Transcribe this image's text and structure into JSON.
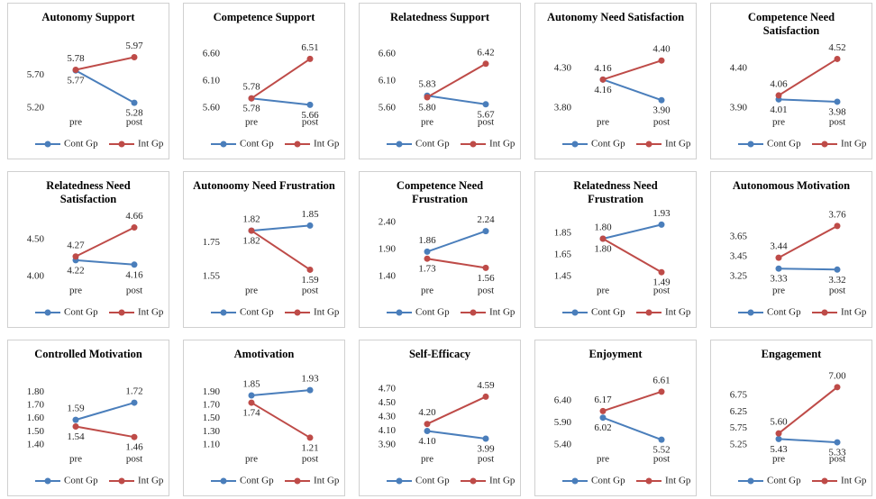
{
  "chart_data": [
    {
      "type": "line",
      "title": "Autonomy  Support",
      "categories": [
        "pre",
        "post"
      ],
      "ylim": [
        5.2,
        6.1
      ],
      "yticks": [
        {
          "value": 5.2,
          "label": "5.20"
        },
        {
          "value": 5.7,
          "label": "5.70"
        }
      ],
      "series": [
        {
          "name": "Cont Gp",
          "color": "#4a7ebb",
          "values": [
            5.77,
            5.28
          ],
          "value_labels": [
            "5.77",
            "5.28"
          ]
        },
        {
          "name": "Int Gp",
          "color": "#be4b48",
          "values": [
            5.78,
            5.97
          ],
          "value_labels": [
            "5.78",
            "5.97"
          ]
        }
      ]
    },
    {
      "type": "line",
      "title": "Competence Support",
      "categories": [
        "pre",
        "post"
      ],
      "ylim": [
        5.6,
        6.7
      ],
      "yticks": [
        {
          "value": 5.6,
          "label": "5.60"
        },
        {
          "value": 6.1,
          "label": "6.10"
        },
        {
          "value": 6.6,
          "label": "6.60"
        }
      ],
      "series": [
        {
          "name": "Cont Gp",
          "color": "#4a7ebb",
          "values": [
            5.78,
            5.66
          ],
          "value_labels": [
            "5.78",
            "5.66"
          ]
        },
        {
          "name": "Int Gp",
          "color": "#be4b48",
          "values": [
            5.78,
            6.51
          ],
          "value_labels": [
            "5.78",
            "6.51"
          ]
        }
      ]
    },
    {
      "type": "line",
      "title": "Relatedness Support",
      "categories": [
        "pre",
        "post"
      ],
      "ylim": [
        5.6,
        6.7
      ],
      "yticks": [
        {
          "value": 5.6,
          "label": "5.60"
        },
        {
          "value": 6.1,
          "label": "6.10"
        },
        {
          "value": 6.6,
          "label": "6.60"
        }
      ],
      "series": [
        {
          "name": "Cont Gp",
          "color": "#4a7ebb",
          "values": [
            5.83,
            5.67
          ],
          "value_labels": [
            "5.83",
            "5.67"
          ]
        },
        {
          "name": "Int Gp",
          "color": "#be4b48",
          "values": [
            5.8,
            6.42
          ],
          "value_labels": [
            "5.80",
            "6.42"
          ]
        }
      ]
    },
    {
      "type": "line",
      "title": "Autonomy  Need Satisfaction",
      "categories": [
        "pre",
        "post"
      ],
      "ylim": [
        3.8,
        4.55
      ],
      "yticks": [
        {
          "value": 3.8,
          "label": "3.80"
        },
        {
          "value": 4.3,
          "label": "4.30"
        }
      ],
      "series": [
        {
          "name": "Cont Gp",
          "color": "#4a7ebb",
          "values": [
            4.16,
            3.9
          ],
          "value_labels": [
            "4.16",
            "3.90"
          ]
        },
        {
          "name": "Int Gp",
          "color": "#be4b48",
          "values": [
            4.16,
            4.4
          ],
          "value_labels": [
            "4.16",
            "4.40"
          ]
        }
      ]
    },
    {
      "type": "line",
      "title": "Competence Need Satisfaction",
      "categories": [
        "pre",
        "post"
      ],
      "ylim": [
        3.9,
        4.65
      ],
      "yticks": [
        {
          "value": 3.9,
          "label": "3.90"
        },
        {
          "value": 4.4,
          "label": "4.40"
        }
      ],
      "series": [
        {
          "name": "Cont Gp",
          "color": "#4a7ebb",
          "values": [
            4.01,
            3.98
          ],
          "value_labels": [
            "4.01",
            "3.98"
          ]
        },
        {
          "name": "Int Gp",
          "color": "#be4b48",
          "values": [
            4.06,
            4.52
          ],
          "value_labels": [
            "4.06",
            "4.52"
          ]
        }
      ]
    },
    {
      "type": "line",
      "title": "Relatedness Need Satisfaction",
      "categories": [
        "pre",
        "post"
      ],
      "ylim": [
        4.0,
        4.8
      ],
      "yticks": [
        {
          "value": 4.0,
          "label": "4.00"
        },
        {
          "value": 4.5,
          "label": "4.50"
        }
      ],
      "series": [
        {
          "name": "Cont Gp",
          "color": "#4a7ebb",
          "values": [
            4.22,
            4.16
          ],
          "value_labels": [
            "4.22",
            "4.16"
          ]
        },
        {
          "name": "Int Gp",
          "color": "#be4b48",
          "values": [
            4.27,
            4.66
          ],
          "value_labels": [
            "4.27",
            "4.66"
          ]
        }
      ]
    },
    {
      "type": "line",
      "title": "Autonoomy  Need Frustration",
      "categories": [
        "pre",
        "post"
      ],
      "ylim": [
        1.55,
        1.9
      ],
      "yticks": [
        1.55,
        1.75
      ],
      "series": [
        {
          "name": "Cont Gp",
          "color": "#4a7ebb",
          "values": [
            1.82,
            1.85
          ],
          "value_labels": [
            "1.82",
            "1.85"
          ]
        },
        {
          "name": "Int Gp",
          "color": "#be4b48",
          "values": [
            1.82,
            1.59
          ],
          "value_labels": [
            "1.82",
            "1.59"
          ]
        }
      ]
    },
    {
      "type": "line",
      "title": "Competence Need Frustration",
      "categories": [
        "pre",
        "post"
      ],
      "ylim": [
        1.4,
        2.5
      ],
      "yticks": [
        {
          "value": 1.4,
          "label": "1.40"
        },
        {
          "value": 1.9,
          "label": "1.90"
        },
        {
          "value": 2.4,
          "label": "2.40"
        }
      ],
      "series": [
        {
          "name": "Cont Gp",
          "color": "#4a7ebb",
          "values": [
            1.86,
            2.24
          ],
          "value_labels": [
            "1.86",
            "2.24"
          ]
        },
        {
          "name": "Int Gp",
          "color": "#be4b48",
          "values": [
            1.73,
            1.56
          ],
          "value_labels": [
            "1.73",
            "1.56"
          ]
        }
      ]
    },
    {
      "type": "line",
      "title": "Relatedness Need Frustration",
      "categories": [
        "pre",
        "post"
      ],
      "ylim": [
        1.45,
        2.0
      ],
      "yticks": [
        1.45,
        1.65,
        1.85
      ],
      "series": [
        {
          "name": "Cont Gp",
          "color": "#4a7ebb",
          "values": [
            1.8,
            1.93
          ],
          "value_labels": [
            "1.80",
            "1.93"
          ]
        },
        {
          "name": "Int Gp",
          "color": "#be4b48",
          "values": [
            1.8,
            1.49
          ],
          "value_labels": [
            "1.80",
            "1.49"
          ]
        }
      ]
    },
    {
      "type": "line",
      "title": "Autonomous  Motivation",
      "categories": [
        "pre",
        "post"
      ],
      "ylim": [
        3.25,
        3.85
      ],
      "yticks": [
        3.25,
        3.45,
        3.65
      ],
      "series": [
        {
          "name": "Cont Gp",
          "color": "#4a7ebb",
          "values": [
            3.33,
            3.32
          ],
          "value_labels": [
            "3.33",
            "3.32"
          ]
        },
        {
          "name": "Int Gp",
          "color": "#be4b48",
          "values": [
            3.44,
            3.76
          ],
          "value_labels": [
            "3.44",
            "3.76"
          ]
        }
      ]
    },
    {
      "type": "line",
      "title": "Controlled  Motivation",
      "categories": [
        "pre",
        "post"
      ],
      "ylim": [
        1.4,
        1.85
      ],
      "yticks": [
        {
          "value": 1.4,
          "label": "1.40"
        },
        {
          "value": 1.5,
          "label": "1.50"
        },
        {
          "value": 1.6,
          "label": "1.60"
        },
        {
          "value": 1.7,
          "label": "1.70"
        },
        {
          "value": 1.8,
          "label": "1.80"
        }
      ],
      "series": [
        {
          "name": "Cont Gp",
          "color": "#4a7ebb",
          "values": [
            1.59,
            1.72
          ],
          "value_labels": [
            "1.59",
            "1.72"
          ]
        },
        {
          "name": "Int Gp",
          "color": "#be4b48",
          "values": [
            1.54,
            1.46
          ],
          "value_labels": [
            "1.54",
            "1.46"
          ]
        }
      ]
    },
    {
      "type": "line",
      "title": "Amotivation",
      "categories": [
        "pre",
        "post"
      ],
      "ylim": [
        1.1,
        2.0
      ],
      "yticks": [
        {
          "value": 1.1,
          "label": "1.10"
        },
        {
          "value": 1.3,
          "label": "1.30"
        },
        {
          "value": 1.5,
          "label": "1.50"
        },
        {
          "value": 1.7,
          "label": "1.70"
        },
        {
          "value": 1.9,
          "label": "1.90"
        }
      ],
      "series": [
        {
          "name": "Cont Gp",
          "color": "#4a7ebb",
          "values": [
            1.85,
            1.93
          ],
          "value_labels": [
            "1.85",
            "1.93"
          ]
        },
        {
          "name": "Int Gp",
          "color": "#be4b48",
          "values": [
            1.74,
            1.21
          ],
          "value_labels": [
            "1.74",
            "1.21"
          ]
        }
      ]
    },
    {
      "type": "line",
      "title": "Self-Efficacy",
      "categories": [
        "pre",
        "post"
      ],
      "ylim": [
        3.9,
        4.75
      ],
      "yticks": [
        {
          "value": 3.9,
          "label": "3.90"
        },
        {
          "value": 4.1,
          "label": "4.10"
        },
        {
          "value": 4.3,
          "label": "4.30"
        },
        {
          "value": 4.5,
          "label": "4.50"
        },
        {
          "value": 4.7,
          "label": "4.70"
        }
      ],
      "series": [
        {
          "name": "Cont Gp",
          "color": "#4a7ebb",
          "values": [
            4.1,
            3.99
          ],
          "value_labels": [
            "4.10",
            "3.99"
          ]
        },
        {
          "name": "Int Gp",
          "color": "#be4b48",
          "values": [
            4.2,
            4.59
          ],
          "value_labels": [
            "4.20",
            "4.59"
          ]
        }
      ]
    },
    {
      "type": "line",
      "title": "Enjoyment",
      "categories": [
        "pre",
        "post"
      ],
      "ylim": [
        5.4,
        6.75
      ],
      "yticks": [
        {
          "value": 5.4,
          "label": "5.40"
        },
        {
          "value": 5.9,
          "label": "5.90"
        },
        {
          "value": 6.4,
          "label": "6.40"
        }
      ],
      "series": [
        {
          "name": "Cont Gp",
          "color": "#4a7ebb",
          "values": [
            6.02,
            5.52
          ],
          "value_labels": [
            "6.02",
            "5.52"
          ]
        },
        {
          "name": "Int Gp",
          "color": "#be4b48",
          "values": [
            6.17,
            6.61
          ],
          "value_labels": [
            "6.17",
            "6.61"
          ]
        }
      ]
    },
    {
      "type": "line",
      "title": "Engagement",
      "categories": [
        "pre",
        "post"
      ],
      "ylim": [
        5.25,
        7.05
      ],
      "yticks": [
        5.25,
        5.75,
        6.25,
        6.75
      ],
      "series": [
        {
          "name": "Cont Gp",
          "color": "#4a7ebb",
          "values": [
            5.43,
            5.33
          ],
          "value_labels": [
            "5.43",
            "5.33"
          ]
        },
        {
          "name": "Int Gp",
          "color": "#be4b48",
          "values": [
            5.6,
            7.0
          ],
          "value_labels": [
            "5.60",
            "7.00"
          ]
        }
      ]
    }
  ]
}
